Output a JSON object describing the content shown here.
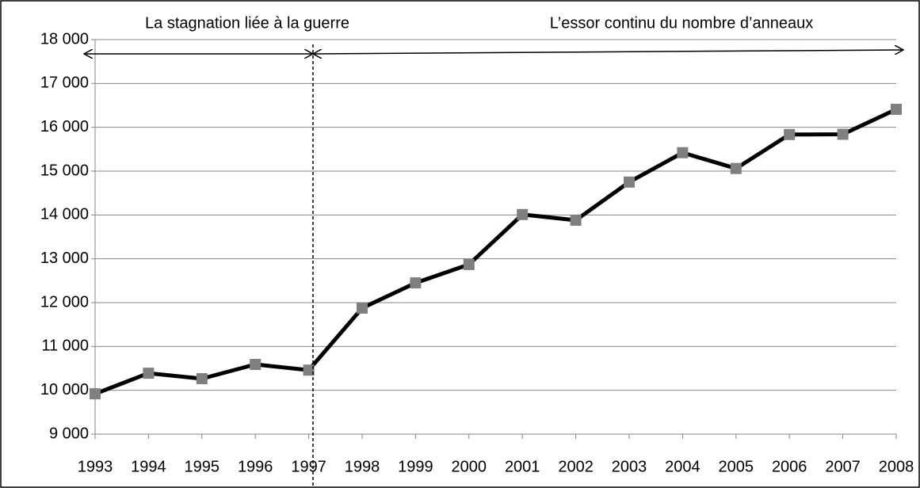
{
  "chart_data": {
    "type": "line",
    "annotations": [
      "La stagnation liée à la guerre",
      "L’essor continu du nombre d’anneaux"
    ],
    "categories": [
      "1993",
      "1994",
      "1995",
      "1996",
      "1997",
      "1998",
      "1999",
      "2000",
      "2001",
      "2002",
      "2003",
      "2004",
      "2005",
      "2006",
      "2007",
      "2008"
    ],
    "series": [
      {
        "color": "#000000",
        "marker_color": "#7f7f7f",
        "values": [
          9920,
          10390,
          10265,
          10590,
          10460,
          11875,
          12450,
          12870,
          14010,
          13880,
          14750,
          15420,
          15060,
          15835,
          15840,
          16410
        ]
      }
    ],
    "ylim": [
      9000,
      18000
    ],
    "yticks": [
      {
        "value": 9000,
        "label": "9 000"
      },
      {
        "value": 10000,
        "label": "10 000"
      },
      {
        "value": 11000,
        "label": "11 000"
      },
      {
        "value": 12000,
        "label": "12 000"
      },
      {
        "value": 13000,
        "label": "13 000"
      },
      {
        "value": 14000,
        "label": "14 000"
      },
      {
        "value": 15000,
        "label": "15 000"
      },
      {
        "value": 16000,
        "label": "16 000"
      },
      {
        "value": 17000,
        "label": "17 000"
      },
      {
        "value": 18000,
        "label": "18 000"
      }
    ],
    "grid": true
  }
}
